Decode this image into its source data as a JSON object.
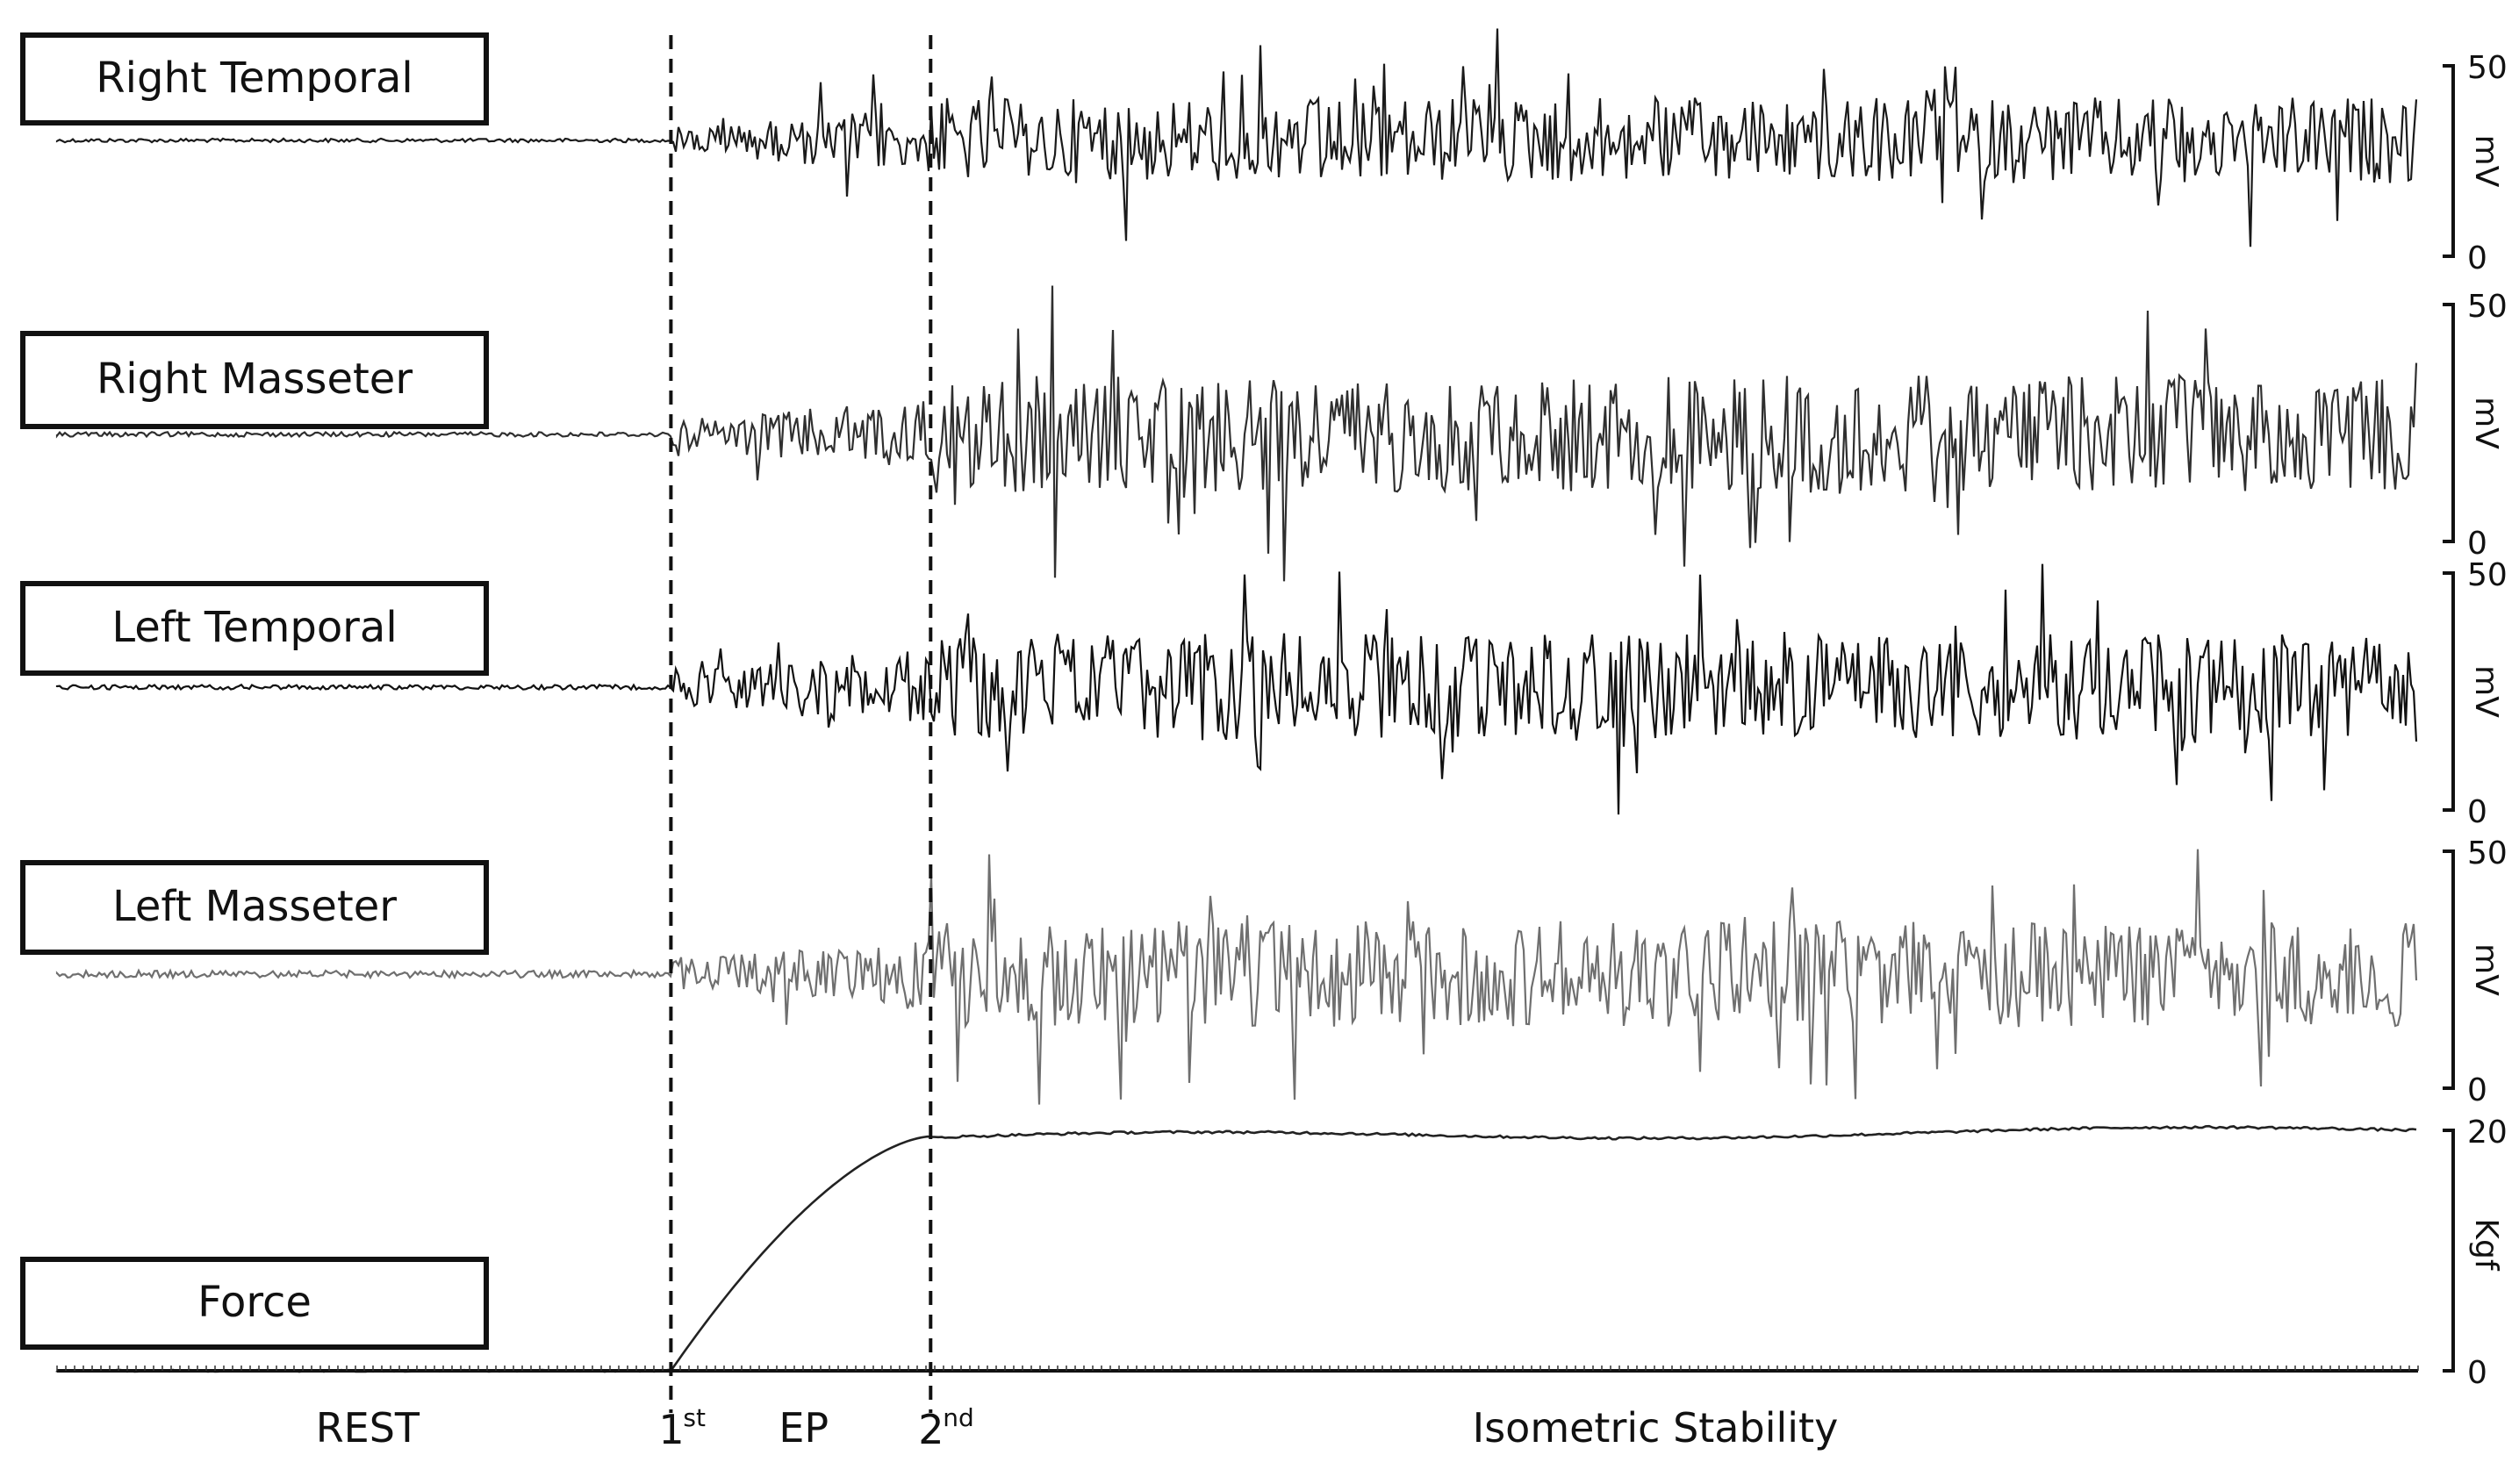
{
  "chart_data": {
    "type": "line",
    "time_markers": [
      {
        "label": "1",
        "sup": "st",
        "position_fraction": 0.26
      },
      {
        "label": "2",
        "sup": "nd",
        "position_fraction": 0.37
      }
    ],
    "phases": [
      {
        "label": "REST"
      },
      {
        "label": "EP"
      },
      {
        "label": "Isometric Stability"
      }
    ],
    "emg_channels": [
      {
        "name": "Right Temporal",
        "unit": "mV",
        "ylim": [
          0,
          50
        ],
        "tick_labels": [
          "50",
          "0"
        ],
        "color": "#1a1a1a",
        "rest_amplitude": 0.02,
        "ep_amplitude": 0.35,
        "stable_amplitude": 0.45
      },
      {
        "name": "Right Masseter",
        "unit": "mV",
        "ylim": [
          0,
          50
        ],
        "tick_labels": [
          "50",
          "0"
        ],
        "color": "#2f2f2f",
        "rest_amplitude": 0.02,
        "ep_amplitude": 0.3,
        "stable_amplitude": 0.5
      },
      {
        "name": "Left Temporal",
        "unit": "mV",
        "ylim": [
          0,
          50
        ],
        "tick_labels": [
          "50",
          "0"
        ],
        "color": "#111111",
        "rest_amplitude": 0.02,
        "ep_amplitude": 0.35,
        "stable_amplitude": 0.45
      },
      {
        "name": "Left Masseter",
        "unit": "mV",
        "ylim": [
          0,
          50
        ],
        "tick_labels": [
          "50",
          "0"
        ],
        "color": "#6f6f6f",
        "rest_amplitude": 0.03,
        "ep_amplitude": 0.3,
        "stable_amplitude": 0.45
      }
    ],
    "force": {
      "name": "Force",
      "unit": "Kgf",
      "ylim": [
        0,
        20
      ],
      "tick_labels": [
        "20",
        "0"
      ],
      "color": "#222222",
      "rest_value": 0,
      "plateau_value": 19.5
    }
  }
}
